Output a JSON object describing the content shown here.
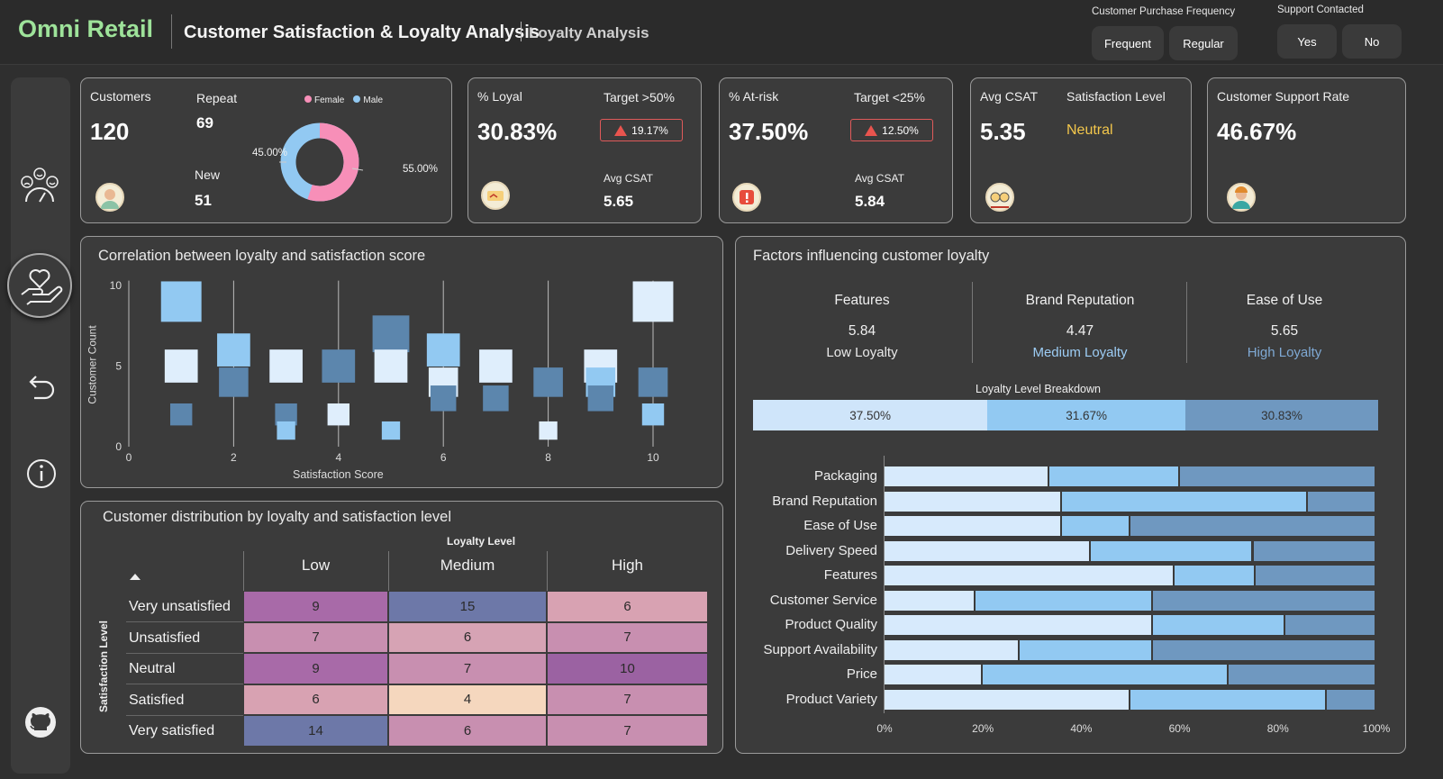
{
  "header": {
    "brand": "Omni Retail",
    "title": "Customer Satisfaction & Loyalty Analysis",
    "subtitle": "Loyalty Analysis",
    "purchase_frequency": {
      "title": "Customer Purchase Frequency",
      "options": [
        "Frequent",
        "Regular"
      ]
    },
    "support_contacted": {
      "title": "Support Contacted",
      "options": [
        "Yes",
        "No"
      ]
    }
  },
  "sidebar": {
    "icons": [
      "satisfaction-meter-icon",
      "loyalty-hand-heart-icon",
      "back-arrow-icon",
      "info-icon",
      "github-icon"
    ],
    "active": "loyalty-hand-heart-icon"
  },
  "kpi": {
    "customers": {
      "label": "Customers",
      "value": "120",
      "repeat_label": "Repeat",
      "repeat_value": "69",
      "new_label": "New",
      "new_value": "51",
      "legend": [
        "Female",
        "Male"
      ],
      "female_pct": "55.00%",
      "male_pct": "45.00%",
      "female_share": 0.55,
      "colors": {
        "female": "#f78fb8",
        "male": "#92c9f2"
      }
    },
    "loyal": {
      "label": "% Loyal",
      "value": "30.83%",
      "target": "Target >50%",
      "delta": "19.17%",
      "avg_label": "Avg CSAT",
      "avg_value": "5.65"
    },
    "at_risk": {
      "label": "% At-risk",
      "value": "37.50%",
      "target": "Target <25%",
      "delta": "12.50%",
      "avg_label": "Avg CSAT",
      "avg_value": "5.84"
    },
    "csat": {
      "label": "Avg CSAT",
      "value": "5.35",
      "level_label": "Satisfaction Level",
      "level_value": "Neutral"
    },
    "support": {
      "label": "Customer Support Rate",
      "value": "46.67%"
    }
  },
  "scatter": {
    "title": "Correlation between loyalty and satisfaction score",
    "xlabel": "Satisfaction Score",
    "ylabel": "Customer Count",
    "xticks": [
      "0",
      "2",
      "4",
      "6",
      "8",
      "10"
    ],
    "yticks": [
      "0",
      "5",
      "10"
    ]
  },
  "matrix": {
    "title": "Customer distribution by loyalty and satisfaction level",
    "col_header": "Loyalty Level",
    "row_header": "Satisfaction Level",
    "columns": [
      "Low",
      "Medium",
      "High"
    ],
    "rows": [
      {
        "label": "Very unsatisfied",
        "values": [
          "9",
          "15",
          "6"
        ]
      },
      {
        "label": "Unsatisfied",
        "values": [
          "7",
          "6",
          "7"
        ]
      },
      {
        "label": "Neutral",
        "values": [
          "9",
          "7",
          "10"
        ]
      },
      {
        "label": "Satisfied",
        "values": [
          "6",
          "4",
          "7"
        ]
      },
      {
        "label": "Very satisfied",
        "values": [
          "14",
          "6",
          "7"
        ]
      }
    ]
  },
  "factors": {
    "title": "Factors influencing customer loyalty",
    "cols": [
      {
        "name": "Features",
        "value": "5.84",
        "level": "Low Loyalty",
        "color": "#eaeaea"
      },
      {
        "name": "Brand Reputation",
        "value": "4.47",
        "level": "Medium Loyalty",
        "color": "#9dcdf5"
      },
      {
        "name": "Ease of Use",
        "value": "5.65",
        "level": "High Loyalty",
        "color": "#7fa9d4"
      }
    ],
    "breakdown_title": "Loyalty Level Breakdown",
    "breakdown": [
      {
        "label": "37.50%",
        "share": 0.375,
        "color": "#cfe5fa"
      },
      {
        "label": "31.67%",
        "share": 0.3167,
        "color": "#92c9f2"
      },
      {
        "label": "30.83%",
        "share": 0.3083,
        "color": "#6f98c0"
      }
    ]
  },
  "chart_data": [
    {
      "type": "scatter",
      "title": "Correlation between loyalty and satisfaction score",
      "xlabel": "Satisfaction Score",
      "ylabel": "Customer Count",
      "xlim": [
        0,
        10.5
      ],
      "ylim": [
        0,
        10
      ],
      "points": [
        {
          "x": 1,
          "y": 9,
          "size": 9,
          "series": "Medium"
        },
        {
          "x": 1,
          "y": 5,
          "size": 7,
          "series": "Low"
        },
        {
          "x": 1,
          "y": 2,
          "size": 4,
          "series": "High"
        },
        {
          "x": 2,
          "y": 6,
          "size": 7,
          "series": "Medium"
        },
        {
          "x": 2,
          "y": 4,
          "size": 6,
          "series": "High"
        },
        {
          "x": 3,
          "y": 5,
          "size": 7,
          "series": "Low"
        },
        {
          "x": 3,
          "y": 2,
          "size": 4,
          "series": "High"
        },
        {
          "x": 3,
          "y": 1,
          "size": 3,
          "series": "Medium"
        },
        {
          "x": 4,
          "y": 5,
          "size": 7,
          "series": "High"
        },
        {
          "x": 4,
          "y": 2,
          "size": 4,
          "series": "Low"
        },
        {
          "x": 5,
          "y": 7,
          "size": 8,
          "series": "High"
        },
        {
          "x": 5,
          "y": 5,
          "size": 7,
          "series": "Low"
        },
        {
          "x": 5,
          "y": 1,
          "size": 3,
          "series": "Medium"
        },
        {
          "x": 6,
          "y": 6,
          "size": 7,
          "series": "Medium"
        },
        {
          "x": 6,
          "y": 4,
          "size": 6,
          "series": "Low"
        },
        {
          "x": 6,
          "y": 3,
          "size": 5,
          "series": "High"
        },
        {
          "x": 7,
          "y": 5,
          "size": 7,
          "series": "Low"
        },
        {
          "x": 7,
          "y": 3,
          "size": 5,
          "series": "High"
        },
        {
          "x": 8,
          "y": 4,
          "size": 6,
          "series": "High"
        },
        {
          "x": 8,
          "y": 1,
          "size": 3,
          "series": "Low"
        },
        {
          "x": 9,
          "y": 5,
          "size": 7,
          "series": "Low"
        },
        {
          "x": 9,
          "y": 4,
          "size": 6,
          "series": "Medium"
        },
        {
          "x": 9,
          "y": 3,
          "size": 5,
          "series": "High"
        },
        {
          "x": 10,
          "y": 9,
          "size": 9,
          "series": "Low"
        },
        {
          "x": 10,
          "y": 4,
          "size": 6,
          "series": "High"
        },
        {
          "x": 10,
          "y": 2,
          "size": 4,
          "series": "Medium"
        }
      ],
      "colors": {
        "Low": "#dfeefc",
        "Medium": "#92c9f2",
        "High": "#5c86ad"
      }
    },
    {
      "type": "bar",
      "orientation": "horizontal-stacked-100",
      "categories": [
        "Packaging",
        "Brand Reputation",
        "Ease of Use",
        "Delivery Speed",
        "Features",
        "Customer Service",
        "Product Quality",
        "Support Availability",
        "Price",
        "Product Variety"
      ],
      "series": [
        {
          "values": [
            33.5,
            36,
            36,
            42,
            59,
            18.5,
            54.5,
            27.5,
            20,
            50
          ],
          "color": "#d7eafc"
        },
        {
          "values": [
            26.5,
            50,
            14,
            33,
            16.5,
            36,
            27,
            27,
            50,
            40
          ],
          "color": "#92c9f2"
        },
        {
          "values": [
            40,
            14,
            50,
            25,
            24.5,
            45.5,
            18.5,
            45.5,
            30,
            10
          ],
          "color": "#6f98c0"
        }
      ],
      "xticks": [
        "0%",
        "20%",
        "40%",
        "60%",
        "80%",
        "100%"
      ],
      "xlim": [
        0,
        100
      ]
    }
  ],
  "matrix_colors": [
    [
      "#a86aa8",
      "#6d78a8",
      "#d8a2b2"
    ],
    [
      "#c88fb0",
      "#d6a3b4",
      "#c88fb0"
    ],
    [
      "#a86aa8",
      "#c88fb0",
      "#9b62a2"
    ],
    [
      "#d8a2b2",
      "#f5d7be",
      "#c88fb0"
    ],
    [
      "#6d78a8",
      "#c88fb0",
      "#c88fb0"
    ]
  ]
}
